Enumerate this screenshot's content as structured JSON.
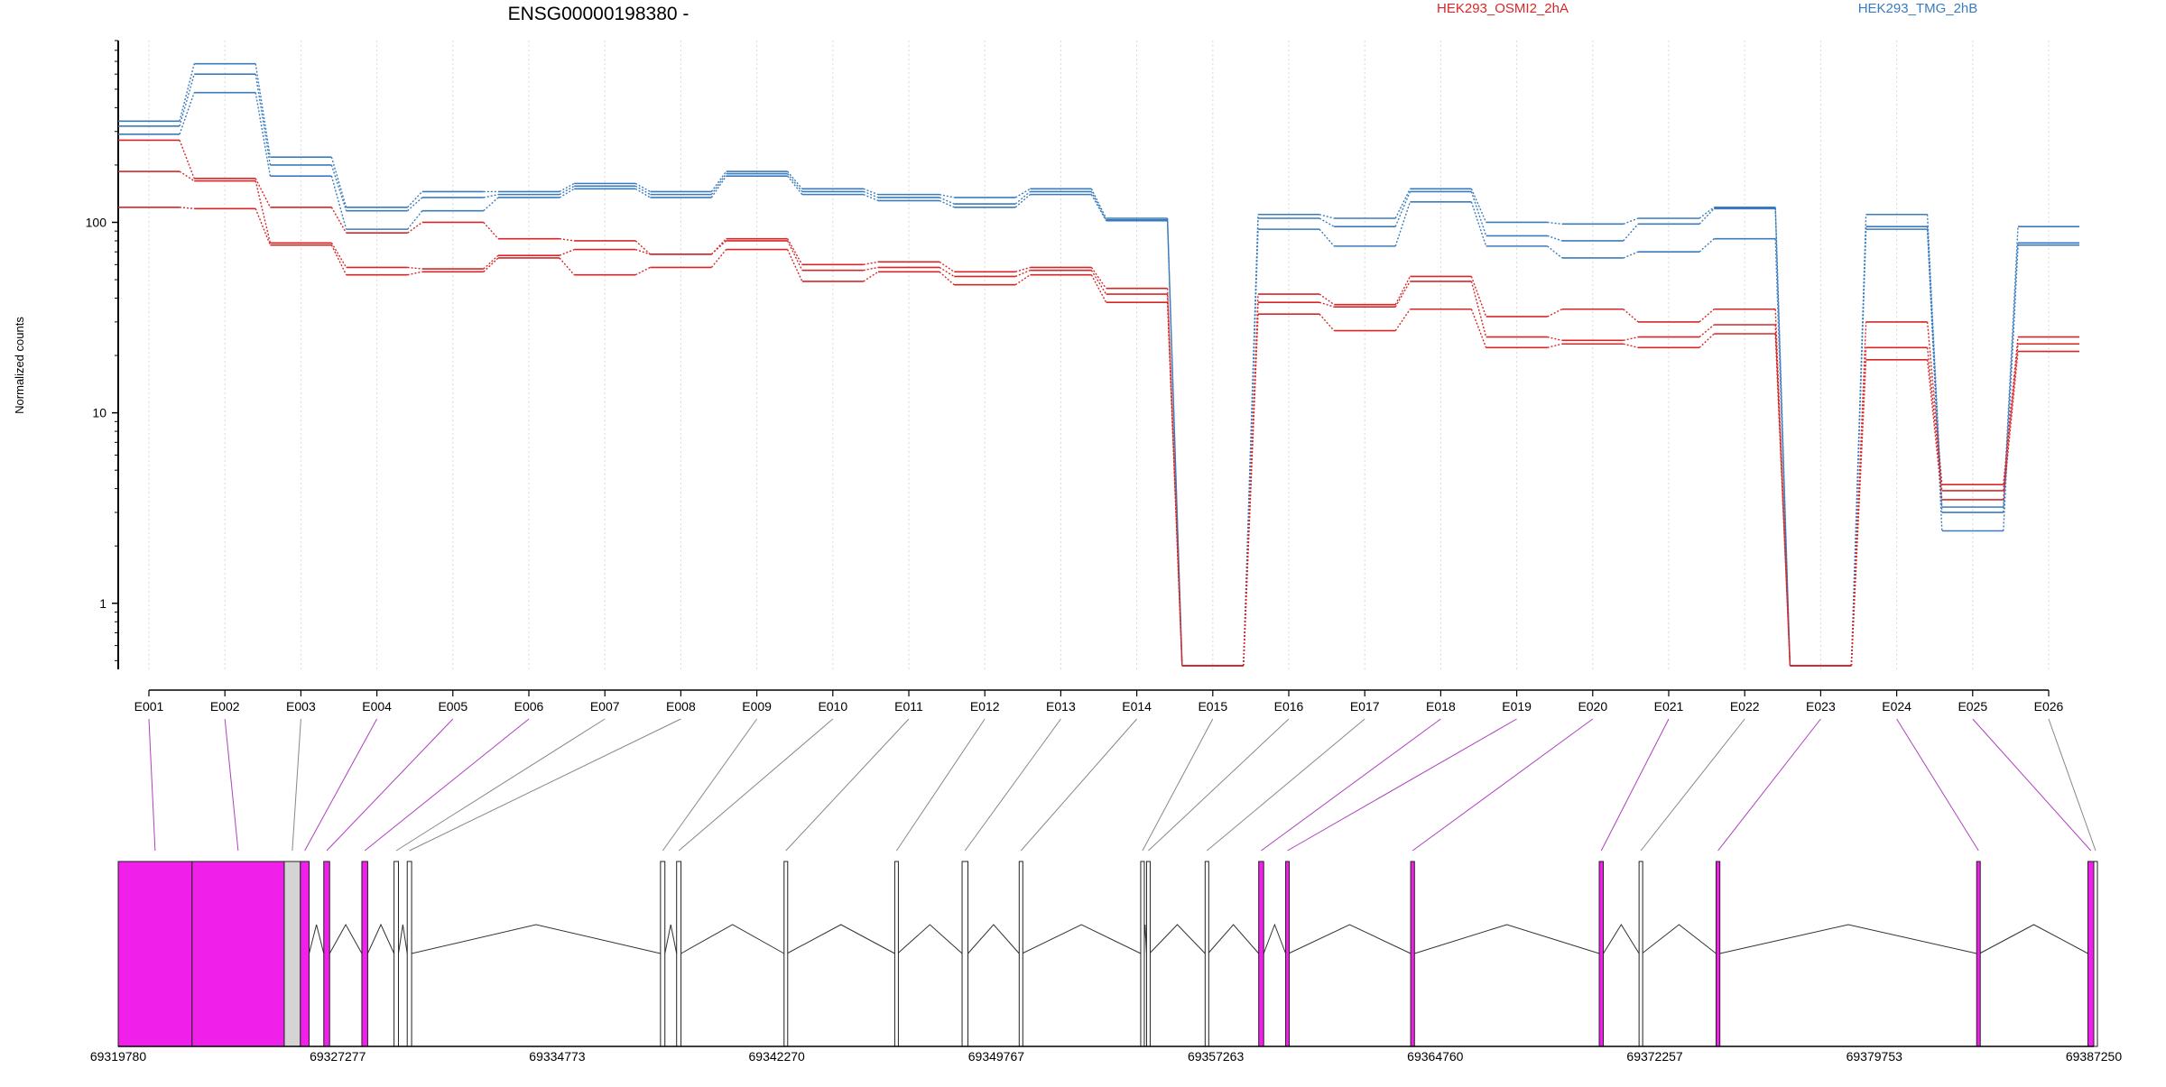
{
  "title": "ENSG00000198380 -",
  "chart_data": {
    "type": "line",
    "ylabel": "Normalized counts",
    "yscale": "log",
    "yticks": [
      1,
      10,
      100
    ],
    "yticklabels": [
      "1",
      "10",
      "100"
    ],
    "ylim": [
      0.45,
      900
    ],
    "grid": "vertical dotted at exon centers",
    "categories": [
      "E001",
      "E002",
      "E003",
      "E004",
      "E005",
      "E006",
      "E007",
      "E008",
      "E009",
      "E010",
      "E011",
      "E012",
      "E013",
      "E014",
      "E015",
      "E016",
      "E017",
      "E018",
      "E019",
      "E020",
      "E021",
      "E022",
      "E023",
      "E024",
      "E025",
      "E026"
    ],
    "legend": [
      {
        "label": "HEK293_OSMI2_2hA",
        "color": "#d62728"
      },
      {
        "label": "HEK293_TMG_2hB",
        "color": "#3a7bbd"
      }
    ],
    "series": [
      {
        "group": "HEK293_TMG_2hB",
        "color": "#3a7bbd",
        "values": [
          340,
          680,
          220,
          120,
          145,
          145,
          160,
          145,
          185,
          150,
          140,
          135,
          150,
          105,
          0.47,
          110,
          105,
          150,
          100,
          98,
          105,
          120,
          0.47,
          110,
          3.2,
          95
        ]
      },
      {
        "group": "HEK293_TMG_2hB",
        "color": "#3a7bbd",
        "values": [
          320,
          600,
          200,
          115,
          135,
          140,
          155,
          140,
          180,
          145,
          135,
          125,
          145,
          103,
          0.47,
          105,
          95,
          145,
          85,
          80,
          98,
          118,
          0.47,
          95,
          3.0,
          78
        ]
      },
      {
        "group": "HEK293_TMG_2hB",
        "color": "#3a7bbd",
        "values": [
          290,
          480,
          175,
          92,
          115,
          135,
          150,
          135,
          175,
          140,
          130,
          120,
          140,
          102,
          0.47,
          92,
          75,
          128,
          75,
          65,
          70,
          82,
          0.47,
          92,
          2.4,
          76
        ]
      },
      {
        "group": "HEK293_OSMI2_2hA",
        "color": "#d62728",
        "values": [
          270,
          170,
          120,
          88,
          100,
          82,
          80,
          68,
          82,
          60,
          62,
          55,
          58,
          45,
          0.47,
          42,
          37,
          52,
          32,
          35,
          30,
          35,
          0.47,
          30,
          4.2,
          25
        ]
      },
      {
        "group": "HEK293_OSMI2_2hA",
        "color": "#d62728",
        "values": [
          185,
          165,
          78,
          58,
          57,
          67,
          72,
          68,
          80,
          56,
          58,
          52,
          56,
          42,
          0.47,
          38,
          36,
          49,
          25,
          24,
          25,
          29,
          0.47,
          22,
          3.9,
          23
        ]
      },
      {
        "group": "HEK293_OSMI2_2hA",
        "color": "#d62728",
        "values": [
          120,
          118,
          76,
          53,
          55,
          65,
          53,
          58,
          72,
          49,
          55,
          47,
          53,
          38,
          0.47,
          33,
          27,
          35,
          22,
          23,
          22,
          26,
          0.47,
          19,
          3.5,
          21
        ]
      }
    ],
    "gene_model": {
      "coord_ticks": [
        69319780,
        69327277,
        69334773,
        69342270,
        69349767,
        69357263,
        69364760,
        69372257,
        69379753,
        69387250
      ],
      "coord_labels": [
        "69319780",
        "69327277",
        "69334773",
        "69342270",
        "69349767",
        "69357263",
        "69364760",
        "69372257",
        "69379753",
        "69387250"
      ],
      "exons": [
        {
          "id": "E001",
          "start": 69319780,
          "end": 69322300,
          "highlight": true
        },
        {
          "id": "E002",
          "start": 69322300,
          "end": 69325450,
          "highlight": true
        },
        {
          "id": "E003",
          "start": 69325450,
          "end": 69326000,
          "highlight": false
        },
        {
          "id": "E004",
          "start": 69326000,
          "end": 69326300,
          "highlight": true
        },
        {
          "id": "E005",
          "start": 69326800,
          "end": 69327000,
          "highlight": true
        },
        {
          "id": "E006",
          "start": 69328100,
          "end": 69328300,
          "highlight": true
        },
        {
          "id": "E007",
          "start": 69329200,
          "end": 69329350,
          "highlight": false
        },
        {
          "id": "E008",
          "start": 69329650,
          "end": 69329800,
          "highlight": false
        },
        {
          "id": "E009",
          "start": 69338300,
          "end": 69338450,
          "highlight": false
        },
        {
          "id": "E010",
          "start": 69338850,
          "end": 69339000,
          "highlight": false
        },
        {
          "id": "E011",
          "start": 69342520,
          "end": 69342620,
          "highlight": false
        },
        {
          "id": "E012",
          "start": 69346300,
          "end": 69346400,
          "highlight": false
        },
        {
          "id": "E013",
          "start": 69348600,
          "end": 69348800,
          "highlight": false
        },
        {
          "id": "E014",
          "start": 69350550,
          "end": 69350650,
          "highlight": false
        },
        {
          "id": "E015",
          "start": 69354700,
          "end": 69354800,
          "highlight": false
        },
        {
          "id": "E016",
          "start": 69354900,
          "end": 69355000,
          "highlight": false
        },
        {
          "id": "E017",
          "start": 69356900,
          "end": 69357000,
          "highlight": false
        },
        {
          "id": "E018",
          "start": 69358730,
          "end": 69358900,
          "highlight": true
        },
        {
          "id": "E019",
          "start": 69359650,
          "end": 69359750,
          "highlight": true
        },
        {
          "id": "E020",
          "start": 69363920,
          "end": 69364050,
          "highlight": true
        },
        {
          "id": "E021",
          "start": 69370360,
          "end": 69370500,
          "highlight": true
        },
        {
          "id": "E022",
          "start": 69371720,
          "end": 69371820,
          "highlight": false
        },
        {
          "id": "E023",
          "start": 69374350,
          "end": 69374480,
          "highlight": true
        },
        {
          "id": "E024",
          "start": 69383250,
          "end": 69383350,
          "highlight": true
        },
        {
          "id": "E025",
          "start": 69387050,
          "end": 69387250,
          "highlight": true
        },
        {
          "id": "E026",
          "start": 69387250,
          "end": 69387250,
          "highlight": false
        }
      ]
    }
  }
}
